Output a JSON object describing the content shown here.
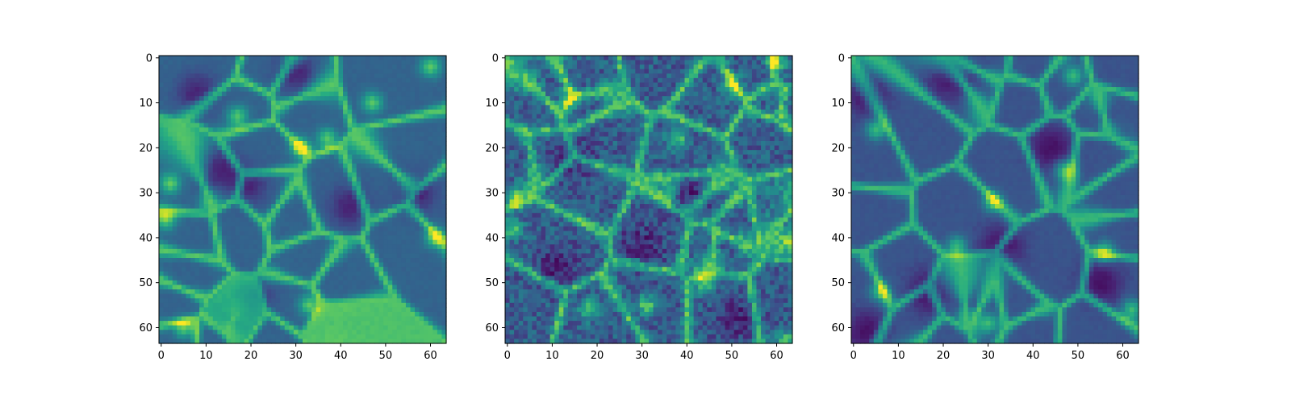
{
  "chart_data": [
    {
      "type": "heatmap",
      "title": "",
      "xlabel": "",
      "ylabel": "",
      "colormap": "viridis",
      "grid": false,
      "shape": [
        64,
        64
      ],
      "xlim": [
        -0.5,
        63.5
      ],
      "ylim": [
        63.5,
        -0.5
      ],
      "xticks": [
        0,
        10,
        20,
        30,
        40,
        50,
        60
      ],
      "yticks": [
        0,
        10,
        20,
        30,
        40,
        50,
        60
      ],
      "texture": "smooth filamentary web",
      "seed": 7,
      "baseline_level": 0.32,
      "bright_spots": [
        [
          17,
          13
        ],
        [
          31,
          20
        ],
        [
          37,
          18
        ],
        [
          1,
          36
        ],
        [
          61,
          40
        ],
        [
          33,
          55
        ],
        [
          5,
          60
        ],
        [
          60,
          2
        ],
        [
          47,
          10
        ],
        [
          2,
          28
        ]
      ],
      "dark_voids": [
        [
          12,
          24
        ],
        [
          19,
          28
        ],
        [
          42,
          33
        ],
        [
          57,
          30
        ],
        [
          30,
          3
        ],
        [
          20,
          53
        ],
        [
          8,
          8
        ]
      ]
    },
    {
      "type": "heatmap",
      "title": "",
      "xlabel": "",
      "ylabel": "",
      "colormap": "viridis",
      "grid": false,
      "shape": [
        64,
        64
      ],
      "xlim": [
        -0.5,
        63.5
      ],
      "ylim": [
        63.5,
        -0.5
      ],
      "xticks": [
        0,
        10,
        20,
        30,
        40,
        50,
        60
      ],
      "yticks": [
        0,
        10,
        20,
        30,
        40,
        50,
        60
      ],
      "texture": "noisy filamentary web",
      "seed": 13,
      "baseline_level": 0.3,
      "bright_spots": [
        [
          14,
          9
        ],
        [
          1,
          38
        ],
        [
          2,
          31
        ],
        [
          36,
          30
        ],
        [
          38,
          18
        ],
        [
          50,
          6
        ],
        [
          18,
          56
        ],
        [
          31,
          55
        ],
        [
          44,
          50
        ],
        [
          63,
          41
        ],
        [
          60,
          1
        ],
        [
          62,
          63
        ]
      ],
      "dark_voids": [
        [
          14,
          22
        ],
        [
          40,
          31
        ],
        [
          11,
          47
        ],
        [
          30,
          42
        ],
        [
          52,
          58
        ]
      ]
    },
    {
      "type": "heatmap",
      "title": "",
      "xlabel": "",
      "ylabel": "",
      "colormap": "viridis",
      "grid": false,
      "shape": [
        64,
        64
      ],
      "xlim": [
        -0.5,
        63.5
      ],
      "ylim": [
        63.5,
        -0.5
      ],
      "xticks": [
        0,
        10,
        20,
        30,
        40,
        50,
        60
      ],
      "yticks": [
        0,
        10,
        20,
        30,
        40,
        50,
        60
      ],
      "texture": "smooth filamentary web",
      "seed": 29,
      "baseline_level": 0.26,
      "bright_spots": [
        [
          47,
          25
        ],
        [
          31,
          32
        ],
        [
          6,
          52
        ],
        [
          30,
          59
        ],
        [
          23,
          42
        ],
        [
          5,
          16
        ],
        [
          49,
          4
        ],
        [
          56,
          43
        ],
        [
          62,
          56
        ]
      ],
      "dark_voids": [
        [
          3,
          8
        ],
        [
          33,
          42
        ],
        [
          17,
          52
        ],
        [
          3,
          61
        ],
        [
          21,
          4
        ],
        [
          44,
          20
        ],
        [
          55,
          50
        ]
      ]
    }
  ]
}
